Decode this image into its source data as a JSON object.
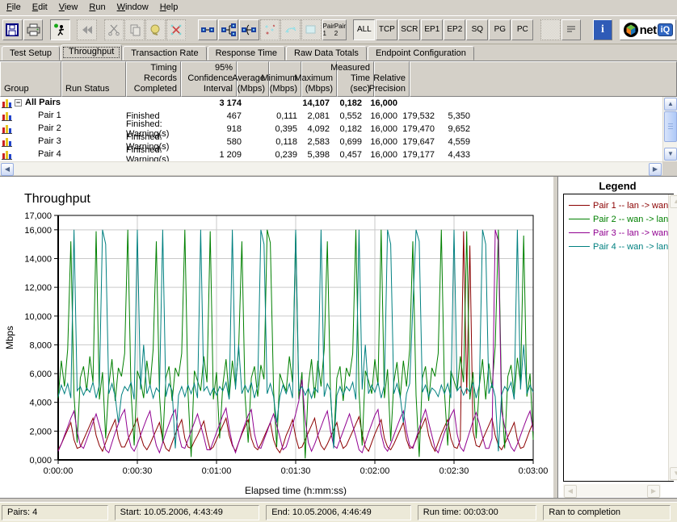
{
  "colors": {
    "window_bg": "#D4D0C8",
    "statusbar_bg": "#ECE9D8",
    "scrollbar_accent": "#AEC8F7"
  },
  "menu": {
    "items": [
      "File",
      "Edit",
      "View",
      "Run",
      "Window",
      "Help"
    ]
  },
  "toolbar": {
    "pair_button": [
      "Pair 1",
      "Pair 2"
    ],
    "view_buttons": [
      "ALL",
      "TCP",
      "SCR",
      "EP1",
      "EP2",
      "SQ",
      "PG",
      "PC"
    ],
    "active_view": "ALL",
    "logo": {
      "net": "net",
      "iq": "iQ"
    }
  },
  "tabs": {
    "items": [
      "Test Setup",
      "Throughput",
      "Transaction Rate",
      "Response Time",
      "Raw Data Totals",
      "Endpoint Configuration"
    ],
    "active": "Throughput"
  },
  "table": {
    "columns": [
      "Group",
      "Run Status",
      "Timing Records\nCompleted",
      "95% Confidence\nInterval",
      "Average\n(Mbps)",
      "Minimum\n(Mbps)",
      "Maximum\n(Mbps)",
      "Measured\nTime (sec)",
      "Relative\nPrecision"
    ],
    "rows": [
      {
        "group": "All Pairs",
        "is_group": true,
        "status": "",
        "cells": [
          "3 174",
          "",
          "14,107",
          "0,182",
          "16,000",
          "",
          ""
        ]
      },
      {
        "group": "Pair 1",
        "is_group": false,
        "status": "Finished",
        "cells": [
          "467",
          "0,111",
          "2,081",
          "0,552",
          "16,000",
          "179,532",
          "5,350"
        ]
      },
      {
        "group": "Pair 2",
        "is_group": false,
        "status": "Finished: Warning(s)",
        "cells": [
          "918",
          "0,395",
          "4,092",
          "0,182",
          "16,000",
          "179,470",
          "9,652"
        ]
      },
      {
        "group": "Pair 3",
        "is_group": false,
        "status": "Finished: Warning(s)",
        "cells": [
          "580",
          "0,118",
          "2,583",
          "0,699",
          "16,000",
          "179,647",
          "4,559"
        ]
      },
      {
        "group": "Pair 4",
        "is_group": false,
        "status": "Finished: Warning(s)",
        "cells": [
          "1 209",
          "0,239",
          "5,398",
          "0,457",
          "16,000",
          "179,177",
          "4,433"
        ]
      }
    ]
  },
  "legend": {
    "title": "Legend"
  },
  "chart_data": {
    "type": "line",
    "title": "Throughput",
    "xlabel": "Elapsed time (h:mm:ss)",
    "ylabel": "Mbps",
    "ylim": [
      0,
      17
    ],
    "x_range_sec": [
      0,
      180
    ],
    "grid": true,
    "legend_position": "right-panel",
    "yticks": {
      "values": [
        0,
        2,
        4,
        6,
        8,
        10,
        12,
        14,
        16,
        17
      ],
      "labels": [
        "0,000",
        "2,000",
        "4,000",
        "6,000",
        "8,000",
        "10,000",
        "12,000",
        "14,000",
        "16,000",
        "17,000"
      ]
    },
    "xticks": {
      "seconds": [
        0,
        30,
        60,
        90,
        120,
        150,
        180
      ],
      "labels": [
        "0:00:00",
        "0:00:30",
        "0:01:00",
        "0:01:30",
        "0:02:00",
        "0:02:30",
        "0:03:00"
      ]
    },
    "series": [
      {
        "name": "Pair 1 -- lan -> wan",
        "color": "#8B0000",
        "values": [
          0.7,
          1.1,
          1.6,
          2.1,
          2.6,
          1.4,
          0.8,
          0.9,
          1.4,
          1.9,
          2.4,
          2.9,
          1.7,
          1.0,
          0.6,
          1.2,
          1.8,
          2.3,
          2.8,
          1.5,
          0.9,
          0.9,
          1.4,
          1.9,
          2.4,
          2.9,
          1.7,
          1.0,
          0.7,
          1.1,
          1.6,
          2.1,
          2.6,
          1.4,
          0.8,
          0.6,
          1.2,
          1.8,
          2.3,
          2.8,
          1.5,
          0.9,
          0.8,
          1.3,
          1.7,
          2.2,
          2.7,
          1.6,
          0.7,
          0.9,
          1.4,
          1.9,
          2.4,
          2.9,
          1.7,
          1.0,
          0.6,
          1.2,
          1.8,
          2.3,
          2.8,
          1.5,
          0.9,
          0.7,
          1.1,
          1.6,
          2.1,
          2.6,
          1.4,
          0.8,
          0.5,
          1.0,
          1.7,
          2.2,
          2.8,
          1.6,
          0.8,
          0.9,
          1.4,
          1.9,
          2.4,
          2.9,
          1.7,
          1.0,
          0.7,
          1.1,
          1.6,
          2.1,
          2.6,
          1.4,
          0.8,
          1.0,
          1.5,
          2.0,
          2.5,
          3.0,
          1.8,
          0.9,
          0.6,
          1.2,
          1.8,
          2.3,
          2.8,
          1.5,
          0.9,
          0.7,
          1.1,
          1.6,
          2.1,
          2.6,
          1.4,
          0.8,
          0.9,
          1.4,
          1.9,
          2.4,
          2.9,
          1.7,
          1.0,
          0.6,
          1.2,
          1.8,
          2.3,
          2.8,
          1.5,
          0.9,
          0.8,
          1.4,
          15.9,
          4.6,
          14.9,
          2.0,
          1.0,
          0.9,
          1.4,
          1.9,
          2.4,
          2.9,
          1.7,
          1.0,
          0.7,
          1.1,
          1.6,
          2.1,
          2.6,
          1.4,
          0.8,
          0.9,
          1.5,
          2.1,
          2.6
        ]
      },
      {
        "name": "Pair 2 -- wan -> lan",
        "color": "#008000",
        "values": [
          4.3,
          6.9,
          5.1,
          7.7,
          15.2,
          4.5,
          1.2,
          5.7,
          6.5,
          4.8,
          7.2,
          5.4,
          15.9,
          4.2,
          6.1,
          1.5,
          5.2,
          7.0,
          4.1,
          6.4,
          5.8,
          7.4,
          16.0,
          4.7,
          1.0,
          6.2,
          5.5,
          4.3,
          6.9,
          5.1,
          7.7,
          15.2,
          4.5,
          1.2,
          5.7,
          6.5,
          4.1,
          6.4,
          5.8,
          7.4,
          16.0,
          4.7,
          0.2,
          6.2,
          5.5,
          4.8,
          7.2,
          5.4,
          15.9,
          4.2,
          6.1,
          1.5,
          5.2,
          7.0,
          4.3,
          6.9,
          5.1,
          7.7,
          15.2,
          4.5,
          1.2,
          5.7,
          6.5,
          4.4,
          6.6,
          5.6,
          16.0,
          15.1,
          4.9,
          0.9,
          6.0,
          5.3,
          4.8,
          7.2,
          5.4,
          15.9,
          4.2,
          6.1,
          0.1,
          5.2,
          7.0,
          4.3,
          6.9,
          5.1,
          7.7,
          15.2,
          4.5,
          1.2,
          5.7,
          6.5,
          4.1,
          6.4,
          5.8,
          7.4,
          16.0,
          4.7,
          1.0,
          6.2,
          5.5,
          4.6,
          7.0,
          5.2,
          16.0,
          4.3,
          6.3,
          1.3,
          5.4,
          6.8,
          4.3,
          6.9,
          5.1,
          7.7,
          15.2,
          4.5,
          0.2,
          5.7,
          6.5,
          4.1,
          6.4,
          5.8,
          7.4,
          16.0,
          4.7,
          1.0,
          6.2,
          5.5,
          4.8,
          7.2,
          5.4,
          15.9,
          4.2,
          6.1,
          1.5,
          5.2,
          7.0,
          4.2,
          6.7,
          5.0,
          7.9,
          16.0,
          4.6,
          0.8,
          5.8,
          6.6,
          4.5,
          7.1,
          5.3,
          15.6,
          4.4,
          6.0,
          1.4
        ]
      },
      {
        "name": "Pair 3 -- lan -> wan",
        "color": "#900090",
        "values": [
          0.6,
          1.1,
          1.7,
          2.3,
          2.9,
          3.4,
          2.0,
          1.0,
          0.8,
          1.4,
          2.0,
          2.6,
          3.2,
          2.4,
          1.6,
          0.7,
          0.5,
          1.2,
          1.9,
          2.5,
          3.1,
          3.5,
          1.8,
          0.9,
          0.6,
          1.1,
          1.7,
          2.3,
          2.9,
          3.4,
          2.0,
          1.0,
          0.5,
          1.2,
          1.9,
          2.5,
          3.1,
          3.5,
          1.8,
          0.9,
          0.8,
          1.4,
          2.0,
          2.6,
          3.2,
          2.4,
          1.6,
          0.7,
          0.7,
          1.3,
          1.9,
          2.5,
          3.1,
          3.6,
          2.2,
          1.1,
          0.5,
          1.2,
          1.9,
          2.5,
          3.1,
          3.5,
          1.8,
          0.9,
          0.8,
          1.4,
          2.0,
          2.6,
          3.2,
          2.4,
          1.6,
          0.7,
          0.9,
          1.6,
          2.4,
          3.2,
          4.1,
          5.6,
          2.8,
          1.2,
          0.6,
          1.1,
          1.7,
          2.3,
          2.9,
          3.4,
          2.0,
          1.0,
          0.8,
          1.4,
          2.0,
          2.6,
          3.2,
          2.4,
          1.6,
          0.7,
          0.5,
          1.2,
          1.9,
          2.5,
          3.1,
          3.5,
          1.8,
          0.9,
          0.6,
          1.1,
          1.7,
          2.3,
          2.9,
          3.4,
          2.0,
          1.0,
          0.8,
          1.5,
          2.2,
          2.9,
          3.5,
          2.6,
          1.7,
          0.8,
          0.5,
          1.2,
          1.9,
          2.5,
          3.1,
          3.5,
          1.8,
          0.9,
          0.6,
          1.3,
          2.0,
          2.7,
          3.3,
          2.5,
          1.6,
          0.8,
          0.8,
          1.5,
          16.0,
          15.2,
          3.4,
          2.3,
          1.5,
          0.9,
          0.6,
          1.1,
          1.7,
          2.3,
          2.9,
          3.4,
          2.0
        ]
      },
      {
        "name": "Pair 4 -- wan -> lan",
        "color": "#008080",
        "values": [
          4.4,
          5.2,
          4.6,
          5.3,
          4.3,
          16.0,
          4.8,
          5.1,
          4.5,
          5.0,
          4.7,
          5.4,
          4.3,
          5.2,
          16.0,
          15.0,
          4.6,
          5.3,
          4.4,
          2.6,
          4.5,
          5.1,
          4.8,
          5.4,
          4.2,
          16.0,
          4.9,
          8.0,
          4.6,
          5.2,
          4.3,
          5.0,
          4.7,
          16.0,
          4.4,
          5.3,
          4.8,
          0.8,
          4.5,
          5.1,
          4.4,
          5.2,
          4.6,
          5.3,
          4.3,
          16.0,
          4.8,
          5.1,
          4.5,
          5.0,
          4.5,
          5.1,
          4.8,
          5.4,
          4.2,
          16.0,
          4.9,
          8.0,
          4.6,
          5.2,
          4.7,
          5.4,
          4.3,
          5.2,
          16.0,
          15.0,
          4.6,
          5.3,
          4.4,
          2.6,
          4.4,
          5.2,
          4.6,
          5.3,
          4.3,
          16.0,
          4.8,
          5.1,
          4.5,
          5.0,
          4.3,
          5.0,
          4.7,
          16.0,
          4.4,
          5.3,
          4.8,
          0.8,
          4.5,
          5.1,
          4.5,
          5.1,
          4.8,
          5.4,
          4.2,
          16.0,
          4.9,
          8.0,
          4.6,
          5.2,
          4.7,
          5.4,
          4.3,
          5.2,
          16.0,
          15.0,
          4.6,
          5.3,
          4.4,
          2.6,
          4.6,
          5.3,
          10.6,
          16.0,
          15.2,
          4.7,
          5.2,
          4.4,
          5.0,
          4.8,
          4.4,
          5.2,
          4.6,
          5.3,
          4.3,
          16.0,
          4.8,
          5.1,
          4.5,
          5.0,
          4.7,
          5.4,
          4.3,
          5.2,
          16.0,
          15.0,
          4.6,
          5.3,
          4.4,
          0.6,
          4.5,
          5.1,
          4.8,
          5.4,
          4.2,
          16.0,
          4.9,
          8.0,
          4.6,
          5.2,
          4.7
        ]
      }
    ]
  },
  "status_bar": {
    "items": [
      "Pairs: 4",
      "Start: 10.05.2006, 4:43:49",
      "End: 10.05.2006, 4:46:49",
      "Run time: 00:03:00",
      "Ran to completion"
    ]
  }
}
